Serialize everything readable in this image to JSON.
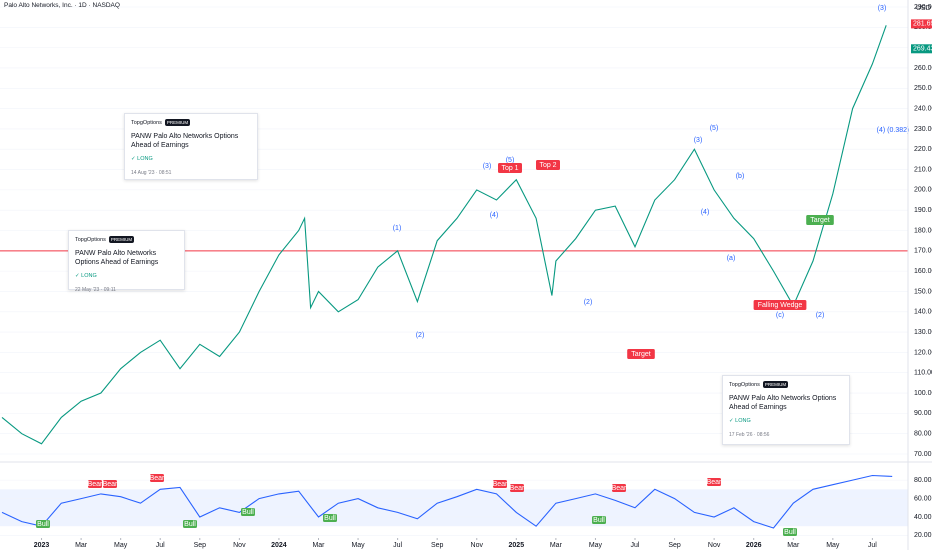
{
  "header": {
    "title": "Palo Alto Networks, Inc. · 1D · NASDAQ",
    "currency": "USD"
  },
  "chart_data": [
    {
      "type": "line",
      "color": "#089981",
      "x": [
        -2,
        -1,
        0,
        1,
        2,
        3,
        4,
        5,
        6,
        7,
        8,
        9,
        10,
        11,
        12,
        13,
        13.3,
        13.6,
        14,
        15,
        16,
        17,
        18,
        19,
        20,
        21,
        22,
        23,
        24,
        25,
        25.8,
        26,
        27,
        28,
        29,
        30,
        31,
        32,
        33,
        34,
        35,
        36,
        37,
        38,
        39,
        40,
        41,
        42,
        42.7
      ],
      "values": [
        88,
        80,
        75,
        88,
        96,
        100,
        112,
        120,
        126,
        112,
        124,
        118,
        130,
        150,
        168,
        180,
        186,
        142,
        150,
        140,
        146,
        162,
        170,
        145,
        175,
        186,
        200,
        195,
        205,
        186,
        148,
        165,
        176,
        190,
        192,
        172,
        195,
        205,
        220,
        200,
        186,
        176,
        160,
        143,
        165,
        198,
        240,
        262,
        281
      ],
      "reference_line": {
        "value": 170,
        "color": "#f23645"
      },
      "xlim": [
        -2.1,
        43.8
      ],
      "xticks": [
        {
          "value": 0,
          "label": "2023"
        },
        {
          "value": 2,
          "label": "Mar"
        },
        {
          "value": 4,
          "label": "May"
        },
        {
          "value": 6,
          "label": "Jul"
        },
        {
          "value": 8,
          "label": "Sep"
        },
        {
          "value": 10,
          "label": "Nov"
        },
        {
          "value": 12,
          "label": "2024"
        },
        {
          "value": 14,
          "label": "Mar"
        },
        {
          "value": 16,
          "label": "May"
        },
        {
          "value": 18,
          "label": "Jul"
        },
        {
          "value": 20,
          "label": "Sep"
        },
        {
          "value": 22,
          "label": "Nov"
        },
        {
          "value": 24,
          "label": "2025"
        },
        {
          "value": 26,
          "label": "Mar"
        },
        {
          "value": 28,
          "label": "May"
        },
        {
          "value": 30,
          "label": "Jul"
        },
        {
          "value": 32,
          "label": "Sep"
        },
        {
          "value": 34,
          "label": "Nov"
        },
        {
          "value": 36,
          "label": "2026"
        },
        {
          "value": 38,
          "label": "Mar"
        },
        {
          "value": 40,
          "label": "May"
        },
        {
          "value": 42,
          "label": "Jul"
        }
      ],
      "ylim": [
        70,
        290
      ],
      "yticks": [
        {
          "value": 70,
          "label": "70.00"
        },
        {
          "value": 80,
          "label": "80.00"
        },
        {
          "value": 90,
          "label": "90.00"
        },
        {
          "value": 100,
          "label": "100.00"
        },
        {
          "value": 110,
          "label": "110.00"
        },
        {
          "value": 120,
          "label": "120.00"
        },
        {
          "value": 130,
          "label": "130.00"
        },
        {
          "value": 140,
          "label": "140.00"
        },
        {
          "value": 150,
          "label": "150.00"
        },
        {
          "value": 160,
          "label": "160.00"
        },
        {
          "value": 170,
          "label": "170.00"
        },
        {
          "value": 180,
          "label": "180.00"
        },
        {
          "value": 190,
          "label": "190.00"
        },
        {
          "value": 200,
          "label": "200.00"
        },
        {
          "value": 210,
          "label": "210.00"
        },
        {
          "value": 220,
          "label": "220.00"
        },
        {
          "value": 230,
          "label": "230.00"
        },
        {
          "value": 240,
          "label": "240.00"
        },
        {
          "value": 250,
          "label": "250.00"
        },
        {
          "value": 260,
          "label": "260.00"
        },
        {
          "value": 270,
          "label": "270.00"
        },
        {
          "value": 280,
          "label": "280.00"
        },
        {
          "value": 290,
          "label": "290.00"
        }
      ],
      "price_labels": [
        {
          "value": 281.69,
          "label": "281.69",
          "color": "#f23645"
        },
        {
          "value": 269.43,
          "label": "269.43",
          "color": "#089981"
        }
      ],
      "wave_labels": [
        "(3)",
        "(4) (0.382)",
        "(5)",
        "(3)",
        "(b)",
        "(4)",
        "(a)",
        "(c)",
        "(2)",
        "(3)",
        "(5)",
        "(4)",
        "(1)",
        "(2)",
        "(2)"
      ],
      "tags": [
        {
          "text": "Top 1",
          "color": "#f23645"
        },
        {
          "text": "Top 2",
          "color": "#f23645"
        },
        {
          "text": "Target",
          "color": "#f23645"
        },
        {
          "text": "Target",
          "color": "#4caf50"
        },
        {
          "text": "Falling Wedge",
          "color": "#f23645"
        }
      ]
    },
    {
      "type": "line",
      "color": "#2962ff",
      "x": [
        -2,
        -1,
        0,
        1,
        2,
        3,
        4,
        5,
        6,
        7,
        8,
        9,
        10,
        11,
        12,
        13,
        14,
        15,
        16,
        17,
        18,
        19,
        20,
        21,
        22,
        23,
        24,
        25,
        26,
        27,
        28,
        29,
        30,
        31,
        32,
        33,
        34,
        35,
        36,
        37,
        38,
        39,
        40,
        41,
        42,
        43
      ],
      "values": [
        45,
        35,
        30,
        55,
        60,
        65,
        62,
        55,
        70,
        72,
        40,
        50,
        45,
        60,
        65,
        68,
        40,
        55,
        60,
        50,
        45,
        38,
        55,
        62,
        70,
        65,
        45,
        30,
        55,
        60,
        65,
        58,
        50,
        70,
        60,
        45,
        40,
        50,
        35,
        28,
        55,
        70,
        75,
        80,
        85,
        84
      ],
      "xlim": [
        -2.1,
        43.8
      ],
      "ylim": [
        15,
        91
      ],
      "yticks": [
        {
          "value": 20,
          "label": "20.00"
        },
        {
          "value": 40,
          "label": "40.00"
        },
        {
          "value": 60,
          "label": "60.00"
        },
        {
          "value": 80,
          "label": "80.00"
        }
      ],
      "band": [
        30,
        70
      ],
      "signals": [
        "Bull",
        "Bear",
        "Bear",
        "Bull",
        "Bear",
        "Bull",
        "Bull",
        "Bear",
        "Bear",
        "Bull",
        "Bear",
        "Bull",
        "Bear"
      ]
    }
  ],
  "cards": [
    {
      "brand": "TopgOptions",
      "badge": "PREMIUM",
      "title": "PANW Palo Alto Networks Options Ahead of Earnings",
      "signal": "✓ LONG",
      "date": "14 Aug '23 · 08:51"
    },
    {
      "brand": "TopgOptions",
      "badge": "PREMIUM",
      "title": "PANW Palo Alto Networks Options Ahead of Earnings",
      "signal": "✓ LONG",
      "date": "22 May '23 · 09:11"
    },
    {
      "brand": "TopgOptions",
      "badge": "PREMIUM",
      "title": "PANW Palo Alto Networks Options Ahead of Earnings",
      "signal": "✓ LONG",
      "date": "17 Feb '26 · 08:56"
    }
  ]
}
